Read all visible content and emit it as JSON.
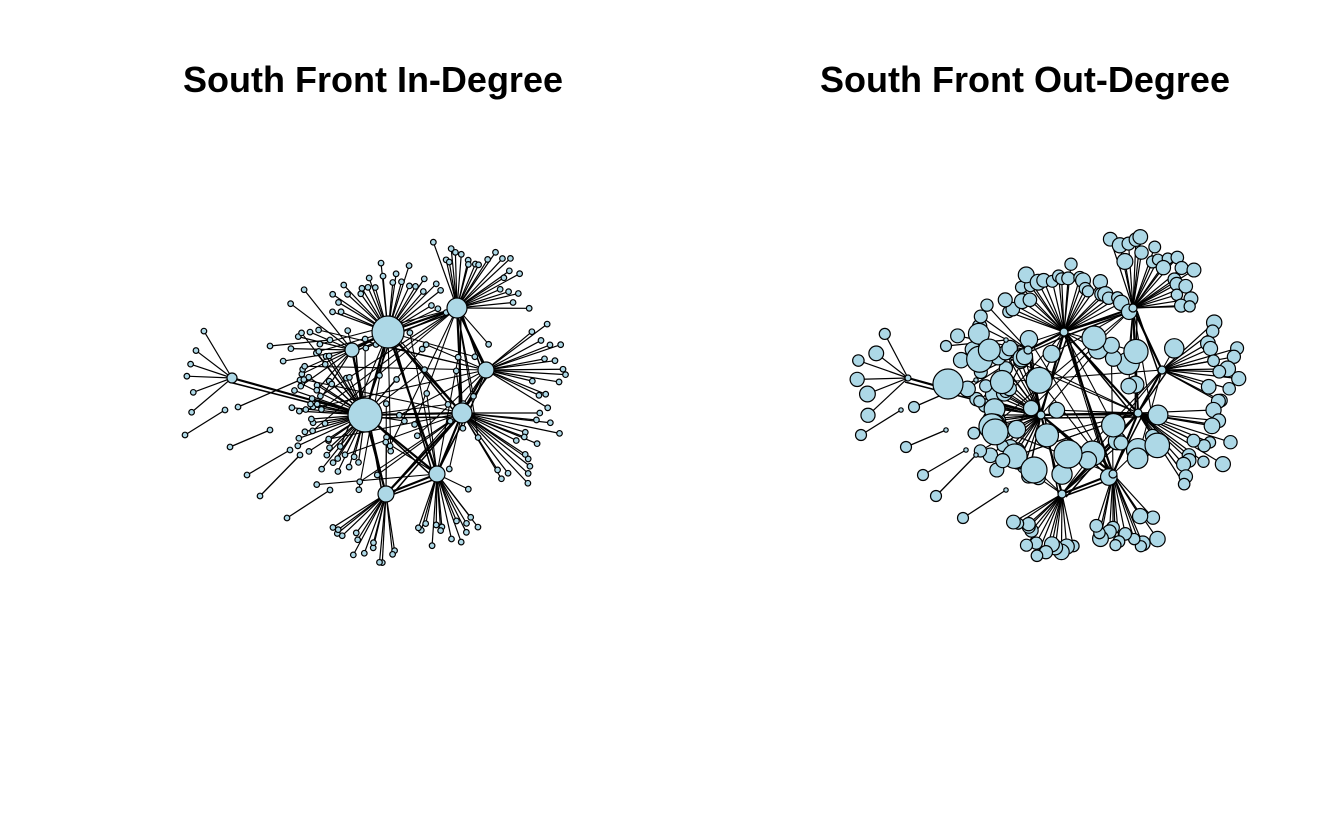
{
  "panels": [
    {
      "id": "in-degree",
      "title": "South Front In-Degree",
      "node_size_by": "in-degree"
    },
    {
      "id": "out-degree",
      "title": "South Front Out-Degree",
      "node_size_by": "out-degree"
    }
  ],
  "colors": {
    "node_fill": "#add8e6",
    "node_stroke": "#000000",
    "edge": "#000000",
    "background": "#ffffff"
  }
}
